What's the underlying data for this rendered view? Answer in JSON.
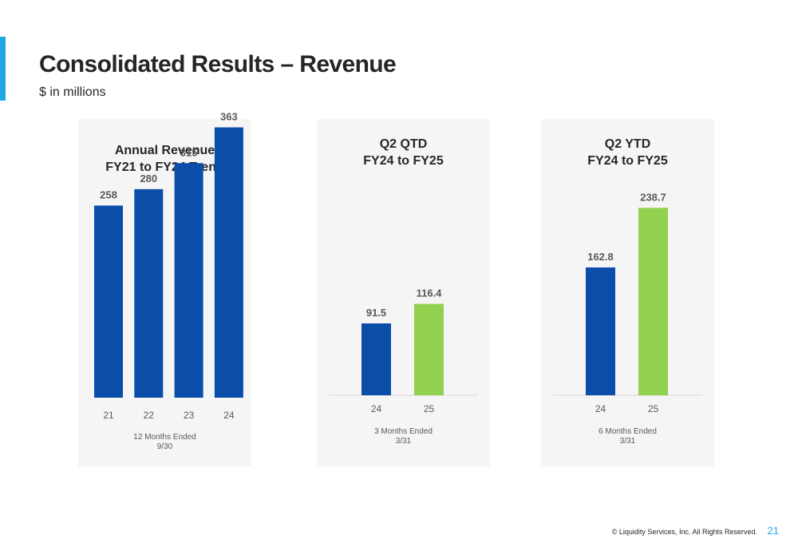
{
  "header": {
    "title": "Consolidated Results – Revenue",
    "subtitle": "$ in millions"
  },
  "footer": {
    "copyright": "© Liquidity Services, Inc. All Rights Reserved.",
    "page_number": "21"
  },
  "colors": {
    "accent": "#1ea7e1",
    "blue": "#0b4ea9",
    "green": "#92d050"
  },
  "panels": [
    {
      "title_line1": "Annual Revenue",
      "title_line2": "FY21 to FY24 Trend",
      "note_line1": "12 Months Ended",
      "note_line2": "9/30"
    },
    {
      "title_line1": "Q2 QTD",
      "title_line2": "FY24 to FY25",
      "note_line1": "3 Months Ended",
      "note_line2": "3/31"
    },
    {
      "title_line1": "Q2 YTD",
      "title_line2": "FY24 to FY25",
      "note_line1": "6 Months Ended",
      "note_line2": "3/31"
    }
  ],
  "chart_data": [
    {
      "type": "bar",
      "title": "Annual Revenue FY21 to FY24 Trend",
      "categories": [
        "21",
        "22",
        "23",
        "24"
      ],
      "values": [
        258,
        280,
        315,
        363
      ],
      "labels": [
        "258",
        "280",
        "315",
        "363"
      ],
      "bar_colors": [
        "#0b4ea9",
        "#0b4ea9",
        "#0b4ea9",
        "#0b4ea9"
      ],
      "xlabel": "12 Months Ended 9/30",
      "ylabel": "",
      "ylim": [
        0,
        400
      ],
      "grid": false,
      "axis_line": false
    },
    {
      "type": "bar",
      "title": "Q2 QTD FY24 to FY25",
      "categories": [
        "24",
        "25"
      ],
      "values": [
        91.5,
        116.4
      ],
      "labels": [
        "91.5",
        "116.4"
      ],
      "bar_colors": [
        "#0b4ea9",
        "#92d050"
      ],
      "xlabel": "3 Months Ended 3/31",
      "ylabel": "",
      "ylim": [
        0,
        300
      ],
      "grid": false,
      "axis_line": true
    },
    {
      "type": "bar",
      "title": "Q2 YTD FY24 to FY25",
      "categories": [
        "24",
        "25"
      ],
      "values": [
        162.8,
        238.7
      ],
      "labels": [
        "162.8",
        "238.7"
      ],
      "bar_colors": [
        "#0b4ea9",
        "#92d050"
      ],
      "xlabel": "6 Months Ended 3/31",
      "ylabel": "",
      "ylim": [
        0,
        300
      ],
      "grid": false,
      "axis_line": true
    }
  ]
}
